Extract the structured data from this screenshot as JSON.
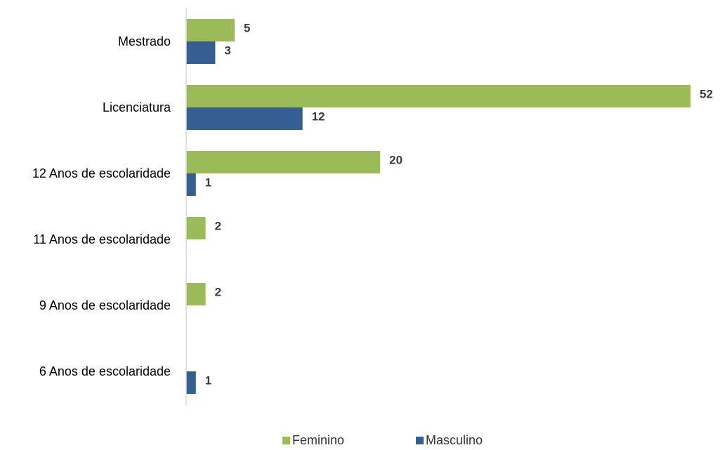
{
  "chart_data": {
    "type": "bar",
    "orientation": "horizontal",
    "categories": [
      "Mestrado",
      "Licenciatura",
      "12 Anos de escolaridade",
      "11 Anos de escolaridade",
      "9 Anos de escolaridade",
      "6 Anos de escolaridade"
    ],
    "series": [
      {
        "name": "Feminino",
        "color": "#9bbb59",
        "values": [
          5,
          52,
          20,
          2,
          2,
          null
        ]
      },
      {
        "name": "Masculino",
        "color": "#355e92",
        "values": [
          3,
          12,
          1,
          null,
          null,
          1
        ]
      }
    ],
    "xlim": [
      0,
      52
    ],
    "grid": false,
    "data_labels": true,
    "legend_position": "bottom"
  }
}
